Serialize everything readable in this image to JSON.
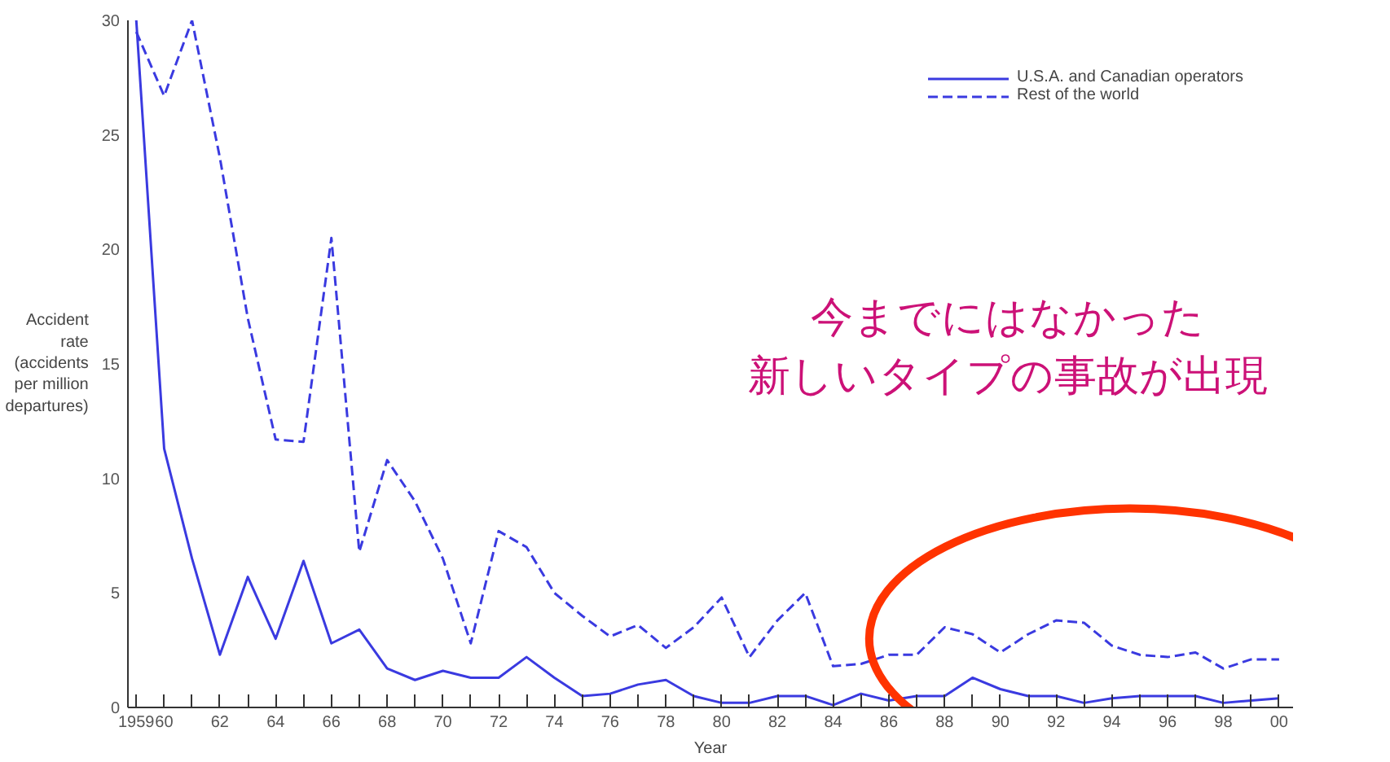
{
  "chart_data": {
    "type": "line",
    "xlabel": "Year",
    "ylabel": "Accident\nrate\n(accidents\nper million\ndepartures)",
    "x": [
      1959,
      1960,
      1961,
      1962,
      1963,
      1964,
      1965,
      1966,
      1967,
      1968,
      1969,
      1970,
      1971,
      1972,
      1973,
      1974,
      1975,
      1976,
      1977,
      1978,
      1979,
      1980,
      1981,
      1982,
      1983,
      1984,
      1985,
      1986,
      1987,
      1988,
      1989,
      1990,
      1991,
      1992,
      1993,
      1994,
      1995,
      1996,
      1997,
      1998,
      1999,
      2000
    ],
    "series": [
      {
        "name": "U.S.A. and Canadian operators",
        "color": "#3a3ae0",
        "line_style": "solid",
        "values": [
          30,
          11.3,
          6.5,
          2.3,
          5.7,
          3.0,
          6.4,
          2.8,
          3.4,
          1.7,
          1.2,
          1.6,
          1.3,
          1.3,
          2.2,
          1.3,
          0.5,
          0.6,
          1.0,
          1.2,
          0.5,
          0.2,
          0.2,
          0.5,
          0.5,
          0.1,
          0.6,
          0.3,
          0.5,
          0.5,
          1.3,
          0.8,
          0.5,
          0.5,
          0.2,
          0.4,
          0.5,
          0.5,
          0.5,
          0.2,
          0.3,
          0.4
        ]
      },
      {
        "name": "Rest of the world",
        "color": "#3a3ae0",
        "line_style": "dashed",
        "values": [
          29.5,
          26.7,
          30,
          24,
          17,
          11.7,
          11.6,
          20.5,
          6.8,
          10.8,
          9,
          6.5,
          2.8,
          7.7,
          7,
          5,
          4,
          3.1,
          3.6,
          2.6,
          3.5,
          4.8,
          2.2,
          3.8,
          5.0,
          1.8,
          1.9,
          2.3,
          2.3,
          3.5,
          3.2,
          2.4,
          3.2,
          3.8,
          3.7,
          2.7,
          2.3,
          2.2,
          2.4,
          1.7,
          2.1,
          2.1
        ]
      }
    ],
    "xlim": [
      1958.7,
      2000.5
    ],
    "ylim": [
      0,
      30
    ],
    "xticks": [
      {
        "value": 1959,
        "label": "1959"
      },
      {
        "value": 1960,
        "label": "60"
      },
      {
        "value": 1961,
        "label": null
      },
      {
        "value": 1962,
        "label": "62"
      },
      {
        "value": 1963,
        "label": null
      },
      {
        "value": 1964,
        "label": "64"
      },
      {
        "value": 1965,
        "label": null
      },
      {
        "value": 1966,
        "label": "66"
      },
      {
        "value": 1967,
        "label": null
      },
      {
        "value": 1968,
        "label": "68"
      },
      {
        "value": 1969,
        "label": null
      },
      {
        "value": 1970,
        "label": "70"
      },
      {
        "value": 1971,
        "label": null
      },
      {
        "value": 1972,
        "label": "72"
      },
      {
        "value": 1973,
        "label": null
      },
      {
        "value": 1974,
        "label": "74"
      },
      {
        "value": 1975,
        "label": null
      },
      {
        "value": 1976,
        "label": "76"
      },
      {
        "value": 1977,
        "label": null
      },
      {
        "value": 1978,
        "label": "78"
      },
      {
        "value": 1979,
        "label": null
      },
      {
        "value": 1980,
        "label": "80"
      },
      {
        "value": 1981,
        "label": null
      },
      {
        "value": 1982,
        "label": "82"
      },
      {
        "value": 1983,
        "label": null
      },
      {
        "value": 1984,
        "label": "84"
      },
      {
        "value": 1985,
        "label": null
      },
      {
        "value": 1986,
        "label": "86"
      },
      {
        "value": 1987,
        "label": null
      },
      {
        "value": 1988,
        "label": "88"
      },
      {
        "value": 1989,
        "label": null
      },
      {
        "value": 1990,
        "label": "90"
      },
      {
        "value": 1991,
        "label": null
      },
      {
        "value": 1992,
        "label": "92"
      },
      {
        "value": 1993,
        "label": null
      },
      {
        "value": 1994,
        "label": "94"
      },
      {
        "value": 1995,
        "label": null
      },
      {
        "value": 1996,
        "label": "96"
      },
      {
        "value": 1997,
        "label": null
      },
      {
        "value": 1998,
        "label": "98"
      },
      {
        "value": 1999,
        "label": null
      },
      {
        "value": 2000,
        "label": "00"
      }
    ],
    "yticks": [
      0,
      5,
      10,
      15,
      20,
      25,
      30
    ],
    "grid": false,
    "legend": "top right",
    "marker": "none",
    "annotations": [
      "今までにはなかった",
      "新しいタイプの事故が出現"
    ]
  }
}
